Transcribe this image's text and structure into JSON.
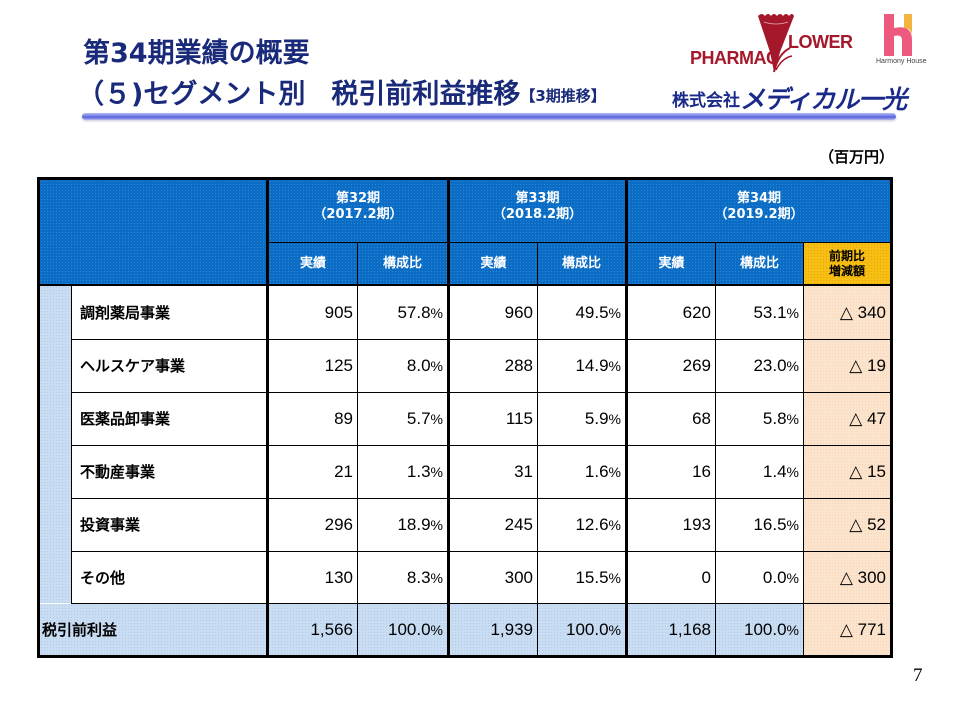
{
  "header": {
    "title_line1": "第34期業績の概要",
    "title_line2_part1": "（５)セグメント別",
    "title_line2_part2": "税引前利益推移",
    "title_line2_suffix": "【3期推移】"
  },
  "logos": {
    "pharmacy_flower_left": "PHARMAC",
    "pharmacy_flower_right": "LOWER",
    "harmony_house": "Harmony House",
    "company_prefix": "株式会社",
    "company_name": "メディカル一光"
  },
  "colors": {
    "title": "#1a2a7a",
    "header_blue": "#0a6cc4",
    "header_orange": "#f7bf14",
    "light_blue": "#c8dcf2",
    "peach": "#fbe3cc",
    "pharmacy_red": "#a5172a",
    "harmony_pink": "#ee5a7e",
    "harmony_yellow": "#f2b43c"
  },
  "unit": "（百万円）",
  "table": {
    "periods": [
      {
        "line1": "第32期",
        "line2": "（2017.2期）"
      },
      {
        "line1": "第33期",
        "line2": "（2018.2期）"
      },
      {
        "line1": "第34期",
        "line2": "（2019.2期）"
      }
    ],
    "subheaders": {
      "actual": "実績",
      "ratio": "構成比",
      "diff_line1": "前期比",
      "diff_line2": "増減額"
    },
    "rows": [
      {
        "label": "調剤薬局事業",
        "p32": "905",
        "r32": "57.8",
        "p33": "960",
        "r33": "49.5",
        "p34": "620",
        "r34": "53.1",
        "diff": "△ 340"
      },
      {
        "label": "ヘルスケア事業",
        "p32": "125",
        "r32": "8.0",
        "p33": "288",
        "r33": "14.9",
        "p34": "269",
        "r34": "23.0",
        "diff": "△ 19"
      },
      {
        "label": "医薬品卸事業",
        "p32": "89",
        "r32": "5.7",
        "p33": "115",
        "r33": "5.9",
        "p34": "68",
        "r34": "5.8",
        "diff": "△ 47"
      },
      {
        "label": "不動産事業",
        "p32": "21",
        "r32": "1.3",
        "p33": "31",
        "r33": "1.6",
        "p34": "16",
        "r34": "1.4",
        "diff": "△ 15"
      },
      {
        "label": "投資事業",
        "p32": "296",
        "r32": "18.9",
        "p33": "245",
        "r33": "12.6",
        "p34": "193",
        "r34": "16.5",
        "diff": "△ 52"
      },
      {
        "label": "その他",
        "p32": "130",
        "r32": "8.3",
        "p33": "300",
        "r33": "15.5",
        "p34": "0",
        "r34": "0.0",
        "diff": "△ 300"
      }
    ],
    "total": {
      "label": "税引前利益",
      "p32": "1,566",
      "r32": "100.0",
      "p33": "1,939",
      "r33": "100.0",
      "p34": "1,168",
      "r34": "100.0",
      "diff": "△ 771"
    },
    "pct_sign": "%"
  },
  "page_number": "7"
}
